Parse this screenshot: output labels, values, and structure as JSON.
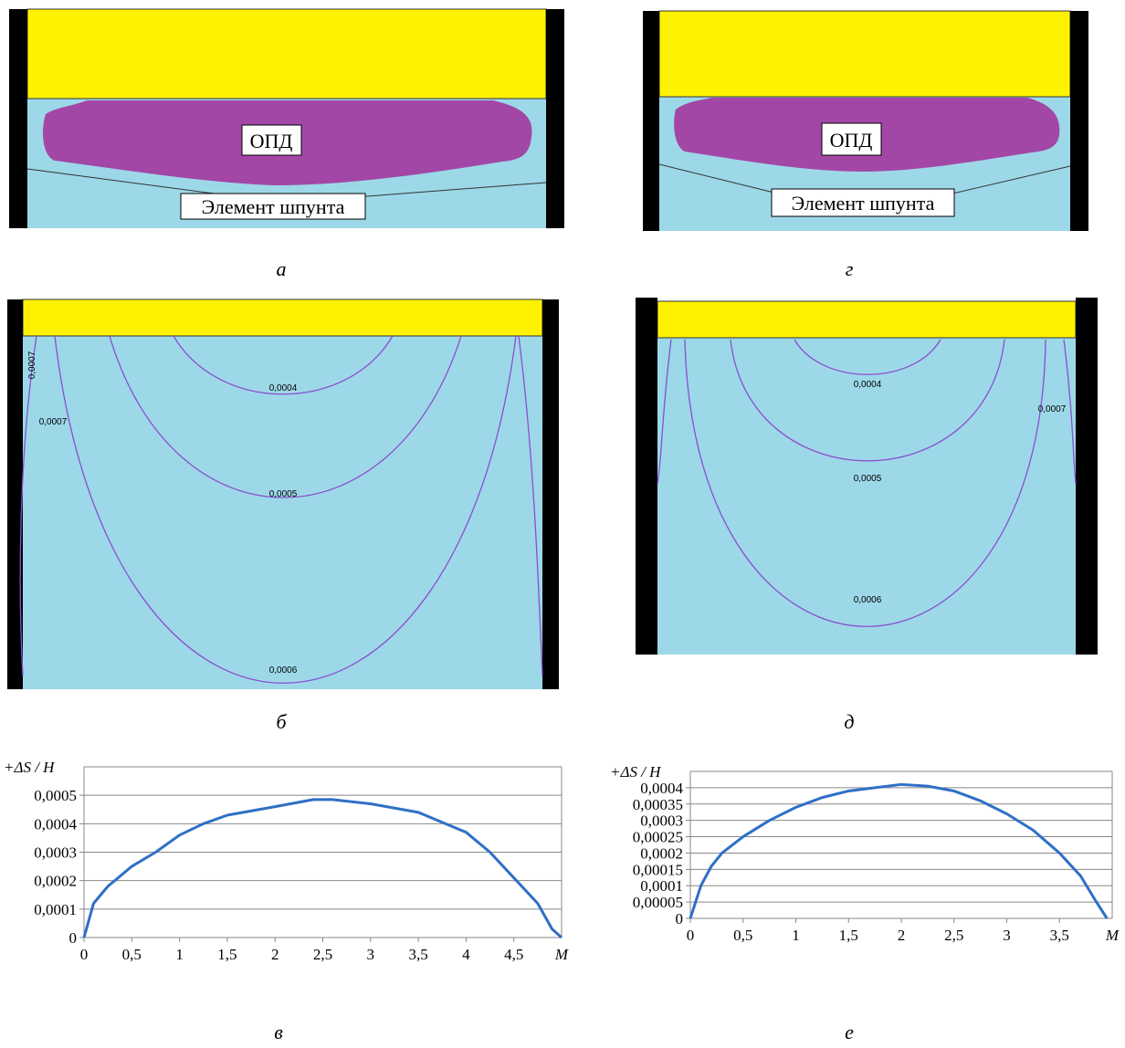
{
  "captions": [
    "а",
    "г",
    "б",
    "д",
    "в",
    "е"
  ],
  "diagram_a": {
    "label_opd": "ОПД",
    "label_element": "Элемент шпунта"
  },
  "diagram_g": {
    "label_opd": "ОПД",
    "label_element": "Элемент шпунта"
  },
  "diagram_b": {
    "contours": [
      "0,0007",
      "0,0007",
      "0,0004",
      "0,0005",
      "0,0006"
    ]
  },
  "diagram_d": {
    "contours": [
      "0,0004",
      "0,0005",
      "0,0006",
      "0,0007"
    ]
  },
  "chart_data": [
    {
      "type": "line",
      "ylabel": "+ΔS / H",
      "xlabel": "M",
      "color": "#2f6fc6",
      "grid": true,
      "x": [
        0,
        0.1,
        0.25,
        0.5,
        0.75,
        1,
        1.25,
        1.5,
        2,
        2.4,
        2.6,
        3,
        3.5,
        4,
        4.25,
        4.5,
        4.75,
        4.9,
        5
      ],
      "values": [
        0,
        0.00012,
        0.00018,
        0.00025,
        0.0003,
        0.00036,
        0.0004,
        0.00043,
        0.00046,
        0.000485,
        0.000485,
        0.00047,
        0.00044,
        0.00037,
        0.0003,
        0.00021,
        0.00012,
        3e-05,
        0
      ],
      "xlim": [
        0,
        5
      ],
      "ylim": [
        0,
        0.0006
      ],
      "xticks": [
        0,
        {
          "value": 0.5,
          "label": "0,5"
        },
        1,
        {
          "value": 1.5,
          "label": "1,5"
        },
        2,
        {
          "value": 2.5,
          "label": "2,5"
        },
        3,
        {
          "value": 3.5,
          "label": "3,5"
        },
        4,
        {
          "value": 4.5,
          "label": "4,5"
        }
      ],
      "yticks": [
        0,
        {
          "value": 0.0001,
          "label": "0,0001"
        },
        {
          "value": 0.0002,
          "label": "0,0002"
        },
        {
          "value": 0.0003,
          "label": "0,0003"
        },
        {
          "value": 0.0004,
          "label": "0,0004"
        },
        {
          "value": 0.0005,
          "label": "0,0005"
        }
      ]
    },
    {
      "type": "line",
      "ylabel": "+ΔS / H",
      "xlabel": "M",
      "color": "#2f6fc6",
      "grid": true,
      "x": [
        0,
        0.1,
        0.2,
        0.3,
        0.5,
        0.75,
        1,
        1.25,
        1.5,
        1.75,
        2,
        2.25,
        2.5,
        2.75,
        3,
        3.25,
        3.5,
        3.7,
        3.85,
        3.95
      ],
      "values": [
        0,
        0.0001,
        0.00016,
        0.0002,
        0.00025,
        0.0003,
        0.00034,
        0.00037,
        0.00039,
        0.0004,
        0.00041,
        0.000405,
        0.00039,
        0.00036,
        0.00032,
        0.00027,
        0.0002,
        0.00013,
        5e-05,
        0
      ],
      "xlim": [
        0,
        4
      ],
      "ylim": [
        0,
        0.00045
      ],
      "xticks": [
        0,
        {
          "value": 0.5,
          "label": "0,5"
        },
        1,
        {
          "value": 1.5,
          "label": "1,5"
        },
        2,
        {
          "value": 2.5,
          "label": "2,5"
        },
        3,
        {
          "value": 3.5,
          "label": "3,5"
        }
      ],
      "yticks": [
        0,
        {
          "value": 5e-05,
          "label": "0,00005"
        },
        {
          "value": 0.0001,
          "label": "0,0001"
        },
        {
          "value": 0.00015,
          "label": "0,00015"
        },
        {
          "value": 0.0002,
          "label": "0,0002"
        },
        {
          "value": 0.00025,
          "label": "0,00025"
        },
        {
          "value": 0.0003,
          "label": "0,0003"
        },
        {
          "value": 0.00035,
          "label": "0,00035"
        },
        {
          "value": 0.0004,
          "label": "0,0004"
        }
      ]
    }
  ]
}
